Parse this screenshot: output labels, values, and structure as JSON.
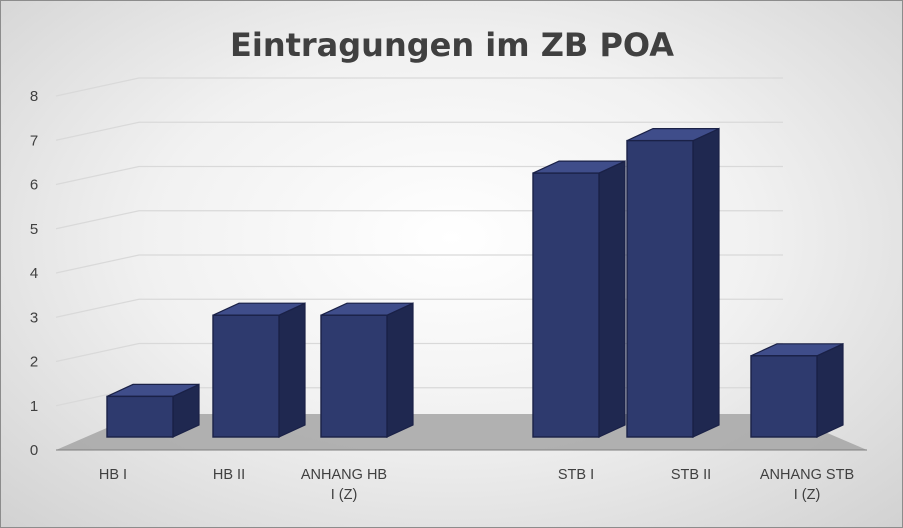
{
  "chart_data": {
    "type": "bar",
    "title": "Eintragungen im ZB POA",
    "categories": [
      [
        "HB I"
      ],
      [
        "HB II"
      ],
      [
        "ANHANG HB",
        "I (Z)"
      ],
      [
        "STB I"
      ],
      [
        "STB II"
      ],
      [
        "ANHANG STB",
        "I (Z)"
      ]
    ],
    "values": [
      1,
      3,
      3,
      6.5,
      7.3,
      2
    ],
    "ylim": [
      0,
      8
    ],
    "yticks": [
      "0",
      "1",
      "2",
      "3",
      "4",
      "5",
      "6",
      "7",
      "8"
    ],
    "grid": true,
    "three_d": true,
    "legend": "none",
    "bar_color": "#2E3A6E"
  }
}
